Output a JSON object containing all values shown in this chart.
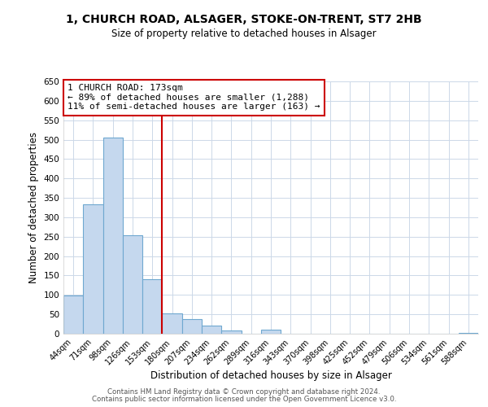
{
  "title1": "1, CHURCH ROAD, ALSAGER, STOKE-ON-TRENT, ST7 2HB",
  "title2": "Size of property relative to detached houses in Alsager",
  "xlabel": "Distribution of detached houses by size in Alsager",
  "ylabel": "Number of detached properties",
  "bar_labels": [
    "44sqm",
    "71sqm",
    "98sqm",
    "126sqm",
    "153sqm",
    "180sqm",
    "207sqm",
    "234sqm",
    "262sqm",
    "289sqm",
    "316sqm",
    "343sqm",
    "370sqm",
    "398sqm",
    "425sqm",
    "452sqm",
    "479sqm",
    "506sqm",
    "534sqm",
    "561sqm",
    "588sqm"
  ],
  "bar_values": [
    98,
    333,
    505,
    253,
    140,
    53,
    38,
    21,
    8,
    0,
    10,
    0,
    0,
    0,
    0,
    0,
    0,
    0,
    0,
    0,
    3
  ],
  "bar_color": "#c5d8ee",
  "bar_edge_color": "#6fa8d0",
  "vline_x_idx": 5,
  "vline_color": "#cc0000",
  "ylim": [
    0,
    650
  ],
  "yticks": [
    0,
    50,
    100,
    150,
    200,
    250,
    300,
    350,
    400,
    450,
    500,
    550,
    600,
    650
  ],
  "annotation_title": "1 CHURCH ROAD: 173sqm",
  "annotation_line1": "← 89% of detached houses are smaller (1,288)",
  "annotation_line2": "11% of semi-detached houses are larger (163) →",
  "annotation_box_color": "#ffffff",
  "annotation_box_edge": "#cc0000",
  "footer1": "Contains HM Land Registry data © Crown copyright and database right 2024.",
  "footer2": "Contains public sector information licensed under the Open Government Licence v3.0.",
  "bg_color": "#ffffff",
  "grid_color": "#ccd8e8"
}
